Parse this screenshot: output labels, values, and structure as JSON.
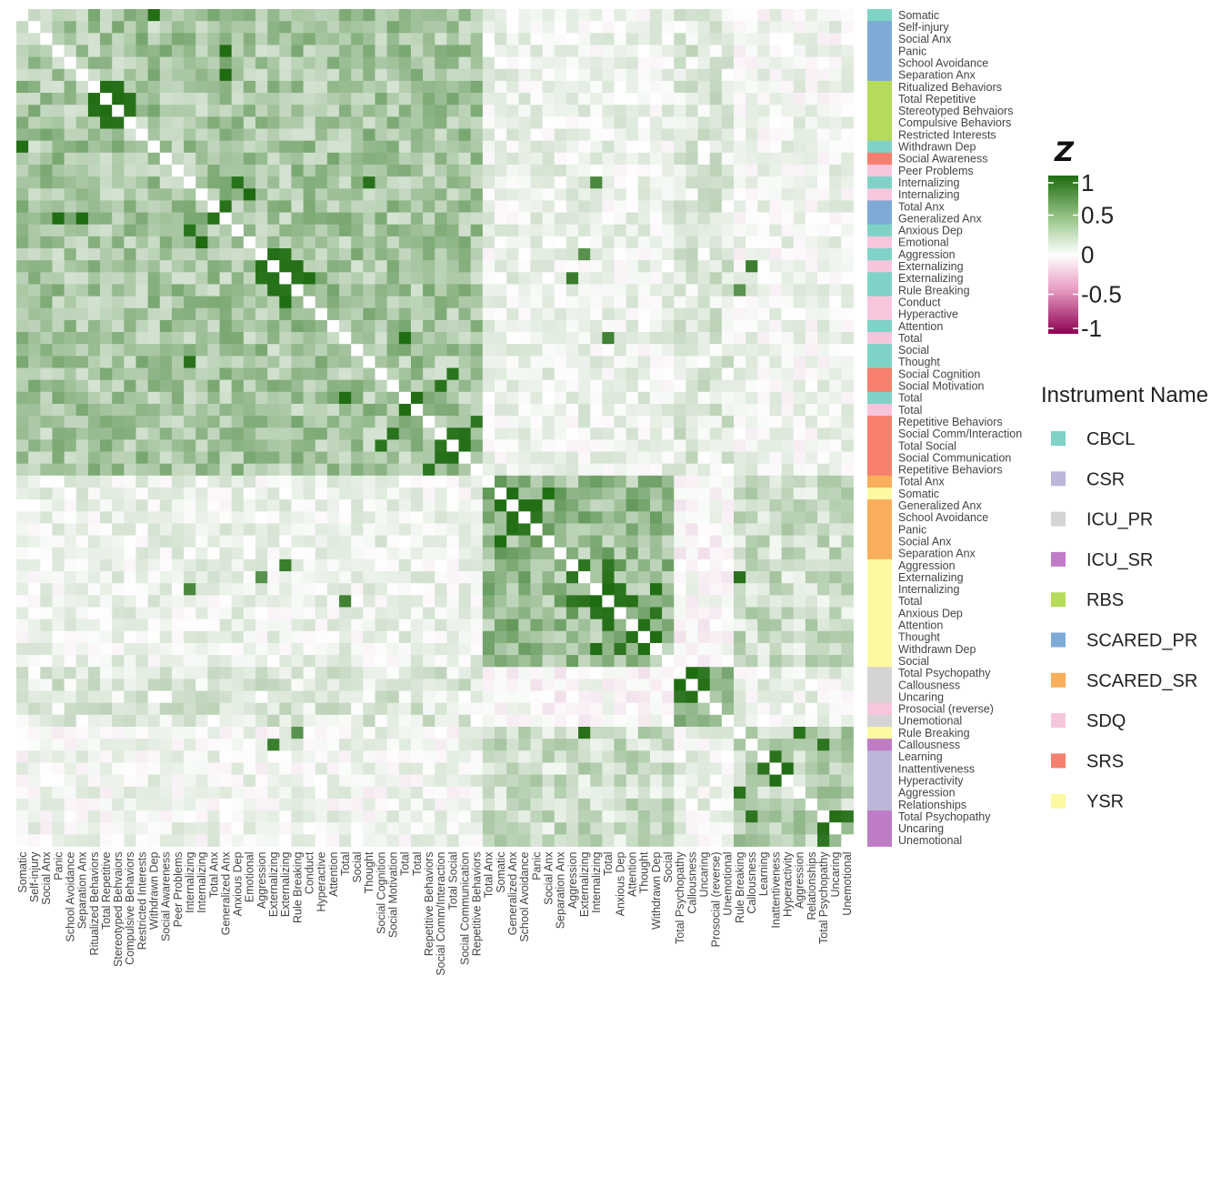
{
  "chart_data": {
    "type": "heatmap",
    "variables": [
      "Somatic",
      "Self-injury",
      "Social Anx",
      "Panic",
      "School Avoidance",
      "Separation Anx",
      "Ritualized Behaviors",
      "Total Repetitive",
      "Stereotyped Behvaiors",
      "Compulsive Behaviors",
      "Restricted Interests",
      "Withdrawn Dep",
      "Social Awareness",
      "Peer Problems",
      "Internalizing",
      "Internalizing",
      "Total Anx",
      "Generalized Anx",
      "Anxious Dep",
      "Emotional",
      "Aggression",
      "Externalizing",
      "Externalizing",
      "Rule Breaking",
      "Conduct",
      "Hyperactive",
      "Attention",
      "Total",
      "Social",
      "Thought",
      "Social Cognition",
      "Social Motivation",
      "Total",
      "Total",
      "Repetitive Behaviors",
      "Social Comm/Interaction",
      "Total Social",
      "Social Communication",
      "Repetitive Behaviors",
      "Total Anx",
      "Somatic",
      "Generalized Anx",
      "School Avoidance",
      "Panic",
      "Social Anx",
      "Separation Anx",
      "Aggression",
      "Externalizing",
      "Internalizing",
      "Total",
      "Anxious Dep",
      "Attention",
      "Thought",
      "Withdrawn Dep",
      "Social",
      "Total Psychopathy",
      "Callousness",
      "Uncaring",
      "Prosocial (reverse)",
      "Unemotional",
      "Rule Breaking",
      "Callousness",
      "Learning",
      "Inattentiveness",
      "Hyperactivity",
      "Aggression",
      "Relationships",
      "Total Psychopathy",
      "Uncaring",
      "Unemotional"
    ],
    "instruments": [
      "CBCL",
      "SCARED_PR",
      "SCARED_PR",
      "SCARED_PR",
      "SCARED_PR",
      "SCARED_PR",
      "RBS",
      "RBS",
      "RBS",
      "RBS",
      "RBS",
      "CBCL",
      "SRS",
      "SDQ",
      "CBCL",
      "SDQ",
      "SCARED_PR",
      "SCARED_PR",
      "CBCL",
      "SDQ",
      "CBCL",
      "SDQ",
      "CBCL",
      "CBCL",
      "SDQ",
      "SDQ",
      "CBCL",
      "SDQ",
      "CBCL",
      "CBCL",
      "SRS",
      "SRS",
      "CBCL",
      "SDQ",
      "SRS",
      "SRS",
      "SRS",
      "SRS",
      "SRS",
      "SCARED_SR",
      "YSR",
      "SCARED_SR",
      "SCARED_SR",
      "SCARED_SR",
      "SCARED_SR",
      "SCARED_SR",
      "YSR",
      "YSR",
      "YSR",
      "YSR",
      "YSR",
      "YSR",
      "YSR",
      "YSR",
      "YSR",
      "ICU_PR",
      "ICU_PR",
      "ICU_PR",
      "SDQ",
      "ICU_PR",
      "YSR",
      "ICU_SR",
      "CSR",
      "CSR",
      "CSR",
      "CSR",
      "CSR",
      "ICU_SR",
      "ICU_SR",
      "ICU_SR"
    ],
    "clusters": [
      [
        0,
        38
      ],
      [
        39,
        54
      ],
      [
        55,
        59
      ],
      [
        60,
        69
      ]
    ],
    "hot_pairs": [
      [
        6,
        7
      ],
      [
        6,
        8
      ],
      [
        7,
        8
      ],
      [
        7,
        9
      ],
      [
        8,
        9
      ],
      [
        3,
        17
      ],
      [
        5,
        17
      ],
      [
        0,
        11
      ],
      [
        14,
        18
      ],
      [
        16,
        17
      ],
      [
        20,
        21
      ],
      [
        20,
        22
      ],
      [
        21,
        22
      ],
      [
        21,
        23
      ],
      [
        22,
        23
      ],
      [
        22,
        24
      ],
      [
        14,
        29
      ],
      [
        15,
        19
      ],
      [
        27,
        32
      ],
      [
        30,
        36
      ],
      [
        31,
        35
      ],
      [
        34,
        38
      ],
      [
        35,
        36
      ],
      [
        35,
        37
      ],
      [
        36,
        37
      ],
      [
        32,
        33
      ],
      [
        40,
        41
      ],
      [
        40,
        44
      ],
      [
        41,
        42
      ],
      [
        41,
        43
      ],
      [
        42,
        43
      ],
      [
        46,
        47
      ],
      [
        46,
        49
      ],
      [
        47,
        49
      ],
      [
        48,
        50
      ],
      [
        48,
        49
      ],
      [
        49,
        50
      ],
      [
        49,
        51
      ],
      [
        50,
        53
      ],
      [
        51,
        52
      ],
      [
        52,
        53
      ],
      [
        48,
        53
      ],
      [
        55,
        56
      ],
      [
        55,
        57
      ],
      [
        56,
        57
      ],
      [
        47,
        60
      ],
      [
        60,
        65
      ],
      [
        62,
        63
      ],
      [
        63,
        64
      ],
      [
        61,
        67
      ],
      [
        67,
        68
      ],
      [
        67,
        69
      ]
    ],
    "cross_pairs": [
      [
        22,
        46
      ],
      [
        20,
        47
      ],
      [
        23,
        60
      ],
      [
        21,
        61
      ],
      [
        27,
        49
      ],
      [
        14,
        48
      ]
    ],
    "colorbar": {
      "title": "Z",
      "ticks": [
        "1",
        "0.5",
        "0",
        "-0.5",
        "-1"
      ],
      "min": -1,
      "max": 1
    },
    "legend_title": "Instrument Name",
    "legend": [
      {
        "name": "CBCL",
        "color": "#7fd3c6"
      },
      {
        "name": "CSR",
        "color": "#bdb6da"
      },
      {
        "name": "ICU_PR",
        "color": "#d4d4d4"
      },
      {
        "name": "ICU_SR",
        "color": "#be7cc6"
      },
      {
        "name": "RBS",
        "color": "#b5db5a"
      },
      {
        "name": "SCARED_PR",
        "color": "#7eaad6"
      },
      {
        "name": "SCARED_SR",
        "color": "#f9ae5b"
      },
      {
        "name": "SDQ",
        "color": "#f7c6dd"
      },
      {
        "name": "SRS",
        "color": "#f6806d"
      },
      {
        "name": "YSR",
        "color": "#fcf9a2"
      }
    ],
    "colors": {
      "high": "#1e6b10",
      "mid": "#ffffff",
      "low": "#8e0152"
    }
  }
}
